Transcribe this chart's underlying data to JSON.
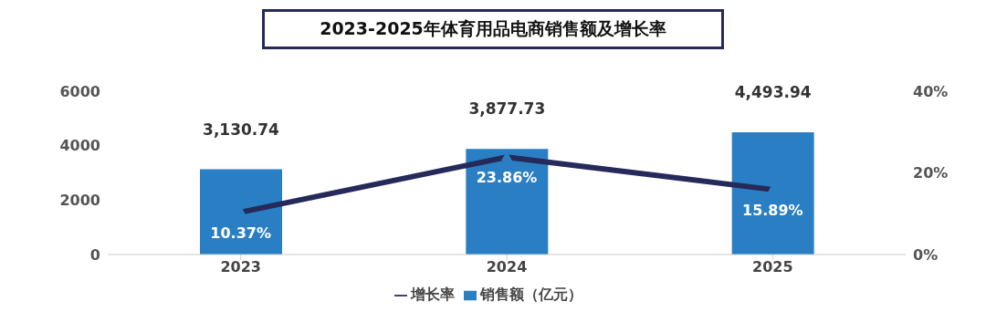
{
  "chart_data": {
    "type": "bar",
    "title": "2023-2025年体育用品电商销售额及增长率",
    "categories": [
      "2023",
      "2024",
      "2025"
    ],
    "series": [
      {
        "name": "销售额（亿元）",
        "color": "#2a7fc4",
        "values": [
          3130.74,
          3877.73,
          4493.94
        ],
        "value_labels": [
          "3,130.74",
          "3,877.73",
          "4,493.94"
        ]
      },
      {
        "name": "增长率",
        "type": "line",
        "axis": "y2",
        "color": "#262a5a",
        "values": [
          10.37,
          23.86,
          15.89
        ],
        "value_labels": [
          "10.37%",
          "23.86%",
          "15.89%"
        ]
      }
    ],
    "ylim": [
      0,
      6000
    ],
    "yticks": [
      0,
      2000,
      4000,
      6000
    ],
    "y2lim": [
      0,
      40
    ],
    "y2ticks": [
      {
        "value": 0,
        "label": "0%"
      },
      {
        "value": 20,
        "label": "20%"
      },
      {
        "value": 40,
        "label": "40%"
      }
    ],
    "grid": false,
    "legend": "bottom",
    "marker": "triangle"
  }
}
